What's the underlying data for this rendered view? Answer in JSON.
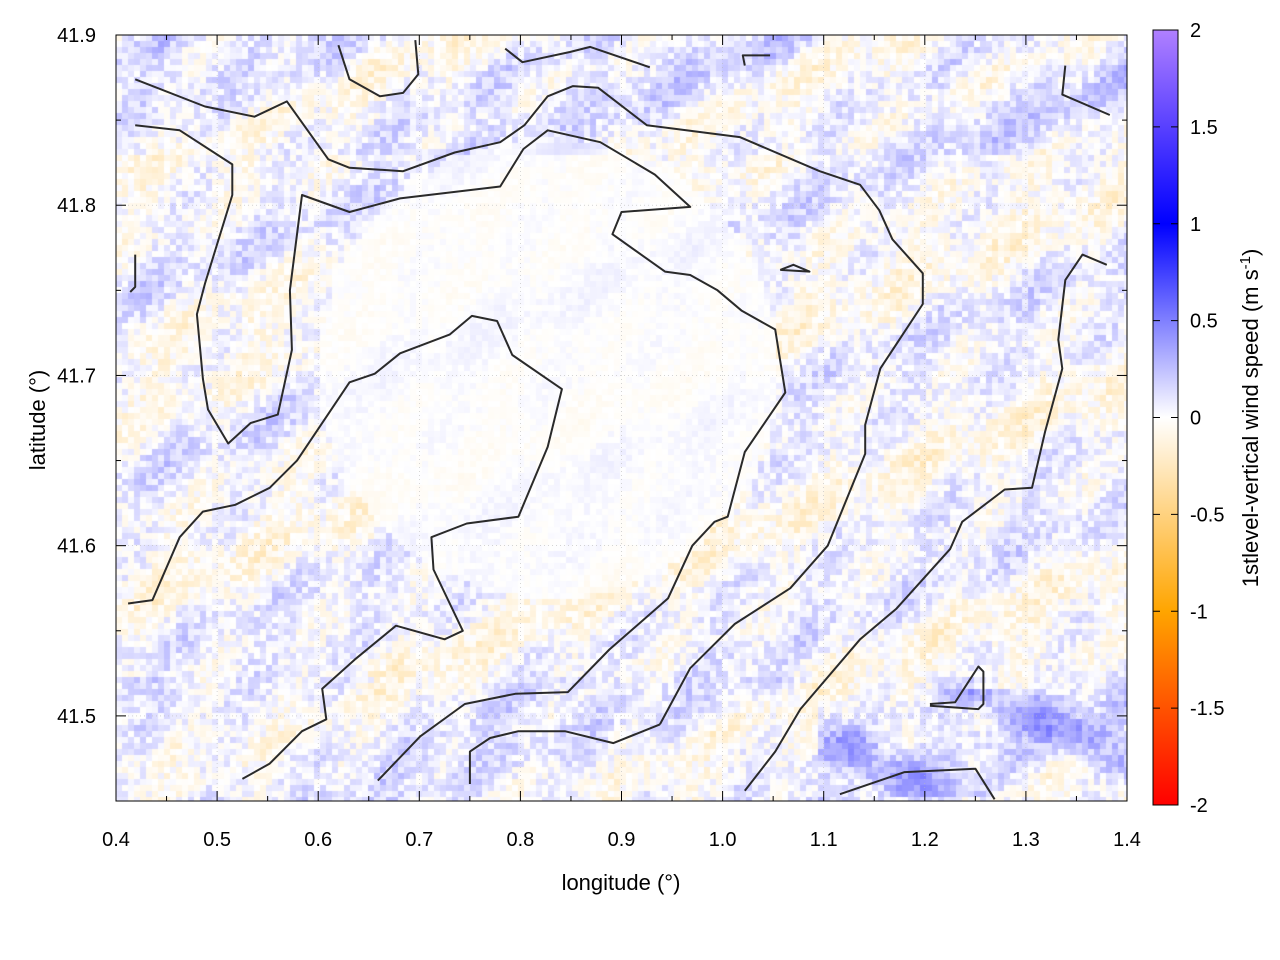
{
  "chart_data": {
    "type": "heatmap",
    "xlabel": "longitude (°)",
    "ylabel": "latitude (°)",
    "xlim": [
      0.4,
      1.4
    ],
    "ylim": [
      41.45,
      41.9
    ],
    "xticks": [
      "0.4",
      "0.5",
      "0.6",
      "0.7",
      "0.8",
      "0.9",
      "1.0",
      "1.1",
      "1.2",
      "1.3",
      "1.4"
    ],
    "yticks": [
      "41.5",
      "41.6",
      "41.7",
      "41.8",
      "41.9"
    ],
    "grid": true,
    "colorbar": {
      "label": "1stlevel-vertical wind speed (m s",
      "label_sup": "-1",
      "label_close": ")",
      "zlim": [
        -2,
        2
      ],
      "ticks": [
        "2",
        "1.5",
        "1",
        "0.5",
        "0",
        "-0.5",
        "-1",
        "-1.5",
        "-2"
      ],
      "colormap": [
        {
          "value": -2,
          "color": "#ff0000"
        },
        {
          "value": -1,
          "color": "#ffa500"
        },
        {
          "value": 0,
          "color": "#ffffff"
        },
        {
          "value": 1,
          "color": "#0000ff"
        },
        {
          "value": 2,
          "color": "#b080ff"
        }
      ]
    },
    "contour_color": "#2a2a2a",
    "contours": [
      [
        [
          0.419,
          41.874
        ],
        [
          0.488,
          41.858
        ],
        [
          0.537,
          41.852
        ],
        [
          0.569,
          41.861
        ],
        [
          0.61,
          41.827
        ],
        [
          0.631,
          41.822
        ],
        [
          0.684,
          41.82
        ],
        [
          0.735,
          41.831
        ],
        [
          0.78,
          41.837
        ],
        [
          0.804,
          41.847
        ],
        [
          0.827,
          41.864
        ],
        [
          0.852,
          41.87
        ],
        [
          0.877,
          41.869
        ],
        [
          0.925,
          41.847
        ],
        [
          1.017,
          41.84
        ],
        [
          1.096,
          41.82
        ],
        [
          1.136,
          41.812
        ],
        [
          1.155,
          41.797
        ],
        [
          1.168,
          41.78
        ],
        [
          1.198,
          41.76
        ],
        [
          1.198,
          41.742
        ],
        [
          1.156,
          41.704
        ],
        [
          1.141,
          41.671
        ],
        [
          1.141,
          41.654
        ],
        [
          1.104,
          41.6
        ],
        [
          1.067,
          41.575
        ],
        [
          1.012,
          41.554
        ],
        [
          0.968,
          41.528
        ],
        [
          0.938,
          41.495
        ]
      ],
      [
        [
          0.419,
          41.847
        ],
        [
          0.463,
          41.844
        ],
        [
          0.515,
          41.824
        ],
        [
          0.515,
          41.806
        ],
        [
          0.488,
          41.754
        ],
        [
          0.48,
          41.736
        ],
        [
          0.486,
          41.698
        ],
        [
          0.491,
          41.68
        ],
        [
          0.511,
          41.66
        ],
        [
          0.533,
          41.672
        ],
        [
          0.56,
          41.677
        ],
        [
          0.574,
          41.715
        ],
        [
          0.572,
          41.75
        ],
        [
          0.584,
          41.806
        ],
        [
          0.631,
          41.796
        ],
        [
          0.681,
          41.804
        ],
        [
          0.78,
          41.811
        ],
        [
          0.803,
          41.833
        ],
        [
          0.827,
          41.844
        ],
        [
          0.879,
          41.837
        ],
        [
          0.933,
          41.818
        ],
        [
          0.968,
          41.799
        ],
        [
          0.9,
          41.796
        ],
        [
          0.891,
          41.783
        ],
        [
          0.943,
          41.761
        ],
        [
          0.968,
          41.759
        ],
        [
          0.995,
          41.75
        ],
        [
          1.019,
          41.738
        ],
        [
          1.052,
          41.727
        ],
        [
          1.062,
          41.69
        ],
        [
          1.022,
          41.655
        ],
        [
          1.005,
          41.617
        ],
        [
          0.992,
          41.614
        ],
        [
          0.97,
          41.6
        ],
        [
          0.946,
          41.569
        ],
        [
          0.888,
          41.539
        ],
        [
          0.847,
          41.514
        ],
        [
          0.795,
          41.513
        ],
        [
          0.745,
          41.507
        ],
        [
          0.701,
          41.488
        ],
        [
          0.659,
          41.462
        ]
      ],
      [
        [
          0.412,
          41.566
        ],
        [
          0.436,
          41.568
        ],
        [
          0.463,
          41.605
        ],
        [
          0.486,
          41.62
        ],
        [
          0.518,
          41.624
        ],
        [
          0.552,
          41.634
        ],
        [
          0.579,
          41.65
        ],
        [
          0.631,
          41.696
        ],
        [
          0.656,
          41.701
        ],
        [
          0.681,
          41.713
        ],
        [
          0.73,
          41.724
        ],
        [
          0.752,
          41.735
        ],
        [
          0.777,
          41.732
        ],
        [
          0.792,
          41.712
        ],
        [
          0.841,
          41.692
        ],
        [
          0.827,
          41.658
        ],
        [
          0.798,
          41.617
        ],
        [
          0.747,
          41.613
        ],
        [
          0.712,
          41.605
        ],
        [
          0.714,
          41.586
        ],
        [
          0.743,
          41.55
        ],
        [
          0.725,
          41.545
        ],
        [
          0.677,
          41.553
        ],
        [
          0.636,
          41.533
        ],
        [
          0.604,
          41.516
        ],
        [
          0.608,
          41.498
        ],
        [
          0.584,
          41.491
        ],
        [
          0.552,
          41.472
        ],
        [
          0.525,
          41.463
        ]
      ],
      [
        [
          1.38,
          41.765
        ],
        [
          1.356,
          41.771
        ],
        [
          1.339,
          41.756
        ],
        [
          1.332,
          41.721
        ],
        [
          1.336,
          41.704
        ],
        [
          1.319,
          41.667
        ],
        [
          1.306,
          41.634
        ],
        [
          1.279,
          41.633
        ],
        [
          1.237,
          41.614
        ],
        [
          1.225,
          41.598
        ],
        [
          1.172,
          41.563
        ],
        [
          1.136,
          41.545
        ],
        [
          1.077,
          41.504
        ],
        [
          1.052,
          41.479
        ],
        [
          1.022,
          41.456
        ]
      ],
      [
        [
          0.75,
          41.46
        ],
        [
          0.75,
          41.479
        ],
        [
          0.77,
          41.487
        ],
        [
          0.798,
          41.491
        ],
        [
          0.844,
          41.491
        ],
        [
          0.892,
          41.484
        ],
        [
          0.938,
          41.495
        ]
      ],
      [
        [
          1.116,
          41.454
        ],
        [
          1.18,
          41.467
        ],
        [
          1.25,
          41.469
        ],
        [
          1.269,
          41.451
        ]
      ],
      [
        [
          1.205,
          41.507
        ],
        [
          1.23,
          41.508
        ],
        [
          1.253,
          41.529
        ],
        [
          1.258,
          41.526
        ],
        [
          1.258,
          41.507
        ],
        [
          1.253,
          41.504
        ],
        [
          1.205,
          41.506
        ]
      ],
      [
        [
          0.62,
          41.894
        ],
        [
          0.631,
          41.874
        ],
        [
          0.661,
          41.864
        ],
        [
          0.684,
          41.866
        ],
        [
          0.699,
          41.877
        ],
        [
          0.696,
          41.897
        ]
      ],
      [
        [
          0.785,
          41.892
        ],
        [
          0.802,
          41.884
        ],
        [
          0.849,
          41.89
        ],
        [
          0.869,
          41.893
        ],
        [
          0.928,
          41.881
        ]
      ],
      [
        [
          1.022,
          41.882
        ],
        [
          1.02,
          41.888
        ],
        [
          1.047,
          41.888
        ]
      ],
      [
        [
          1.339,
          41.882
        ],
        [
          1.336,
          41.865
        ],
        [
          1.383,
          41.853
        ]
      ],
      [
        [
          0.419,
          41.771
        ],
        [
          0.419,
          41.752
        ],
        [
          0.414,
          41.749
        ]
      ],
      [
        [
          1.057,
          41.762
        ],
        [
          1.07,
          41.765
        ],
        [
          1.086,
          41.761
        ],
        [
          1.057,
          41.762
        ]
      ]
    ]
  }
}
